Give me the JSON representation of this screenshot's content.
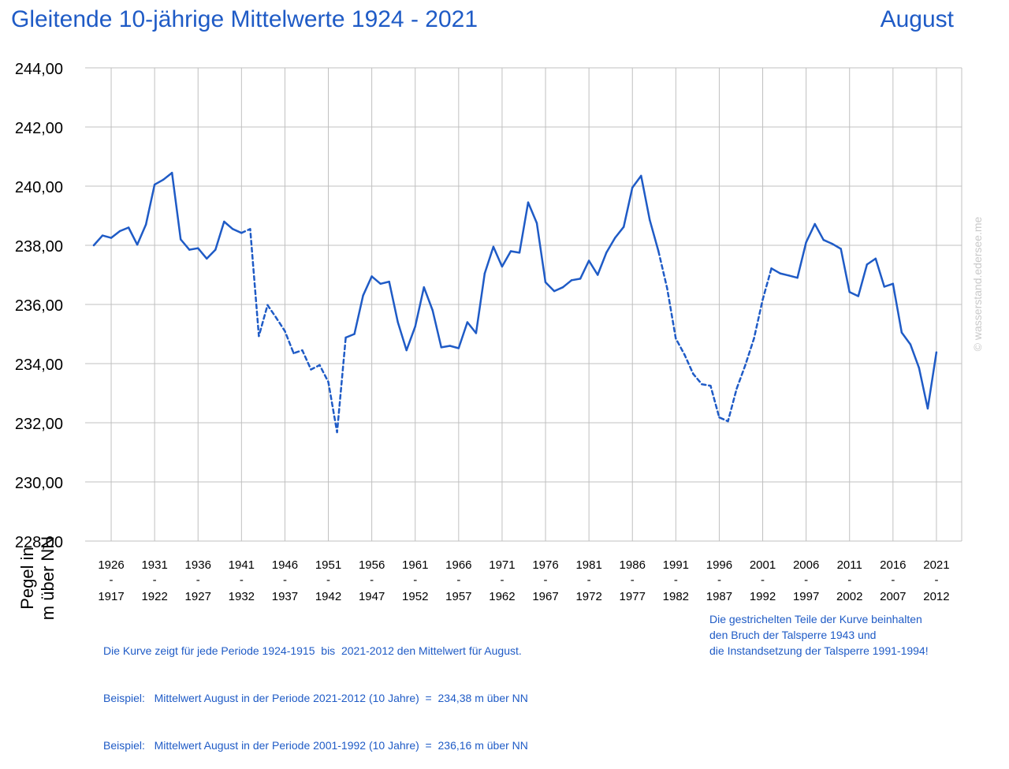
{
  "title": "Gleitende 10-jährige Mittelwerte 1924 - 2021",
  "month": "August",
  "watermark": "© wasserstand.edersee.me",
  "ylabel_line1": "Pegel in",
  "ylabel_line2": "m über NN",
  "notes_left": [
    "Die Kurve zeigt für jede Periode 1924-1915  bis  2021-2012 den Mittelwert für August.",
    "Beispiel:   Mittelwert August in der Periode 2021-2012 (10 Jahre)  =  234,38 m über NN",
    "Beispiel:   Mittelwert August in der Periode 2001-1992 (10 Jahre)  =  236,16 m über NN"
  ],
  "notes_right": [
    "Die gestrichelten Teile der Kurve beinhalten",
    "den Bruch der Talsperre 1943 und",
    "die Instandsetzung der Talsperre 1991-1994!"
  ],
  "chart_data": {
    "type": "line",
    "line_color": "#1f5bc6",
    "grid_color": "#c0c0c0",
    "grid": true,
    "ylim": [
      228,
      244
    ],
    "yticks": [
      "228,00",
      "230,00",
      "232,00",
      "234,00",
      "236,00",
      "238,00",
      "240,00",
      "242,00",
      "244,00"
    ],
    "xticks_top": [
      "1926",
      "1931",
      "1936",
      "1941",
      "1946",
      "1951",
      "1956",
      "1961",
      "1966",
      "1971",
      "1976",
      "1981",
      "1986",
      "1991",
      "1996",
      "2001",
      "2006",
      "2011",
      "2016",
      "2021"
    ],
    "xticks_sep": "-",
    "xticks_bottom": [
      "1917",
      "1922",
      "1927",
      "1932",
      "1937",
      "1942",
      "1947",
      "1952",
      "1957",
      "1962",
      "1967",
      "1972",
      "1977",
      "1982",
      "1987",
      "1992",
      "1997",
      "2002",
      "2007",
      "2012"
    ],
    "x_start": 1924,
    "dashed_ranges": [
      [
        1941,
        1953
      ],
      [
        1989,
        2002
      ]
    ],
    "series": [
      {
        "values": [
          238.0,
          238.33,
          238.25,
          238.48,
          238.6,
          238.02,
          238.7,
          240.05,
          240.22,
          240.45,
          238.2,
          237.85,
          237.9,
          237.55,
          237.85,
          238.8,
          238.55,
          238.42,
          238.55,
          234.93,
          235.98,
          235.55,
          235.1,
          234.35,
          234.45,
          233.8,
          233.95,
          233.38,
          231.68,
          234.88,
          235.0,
          236.3,
          236.95,
          236.7,
          236.77,
          235.4,
          234.45,
          235.25,
          236.58,
          235.8,
          234.55,
          234.6,
          234.52,
          235.4,
          235.03,
          237.05,
          237.95,
          237.28,
          237.8,
          237.75,
          239.45,
          238.75,
          236.75,
          236.45,
          236.58,
          236.82,
          236.87,
          237.48,
          237.0,
          237.75,
          238.25,
          238.62,
          239.95,
          240.35,
          238.85,
          237.8,
          236.55,
          234.85,
          234.3,
          233.65,
          233.3,
          233.25,
          232.18,
          232.05,
          233.15,
          233.95,
          234.85,
          236.16,
          237.22,
          237.05,
          236.98,
          236.9,
          238.1,
          238.72,
          238.18,
          238.05,
          237.88,
          236.42,
          236.28,
          237.35,
          237.55,
          236.6,
          236.7,
          235.05,
          234.65,
          233.85,
          232.48,
          234.38
        ]
      }
    ]
  }
}
